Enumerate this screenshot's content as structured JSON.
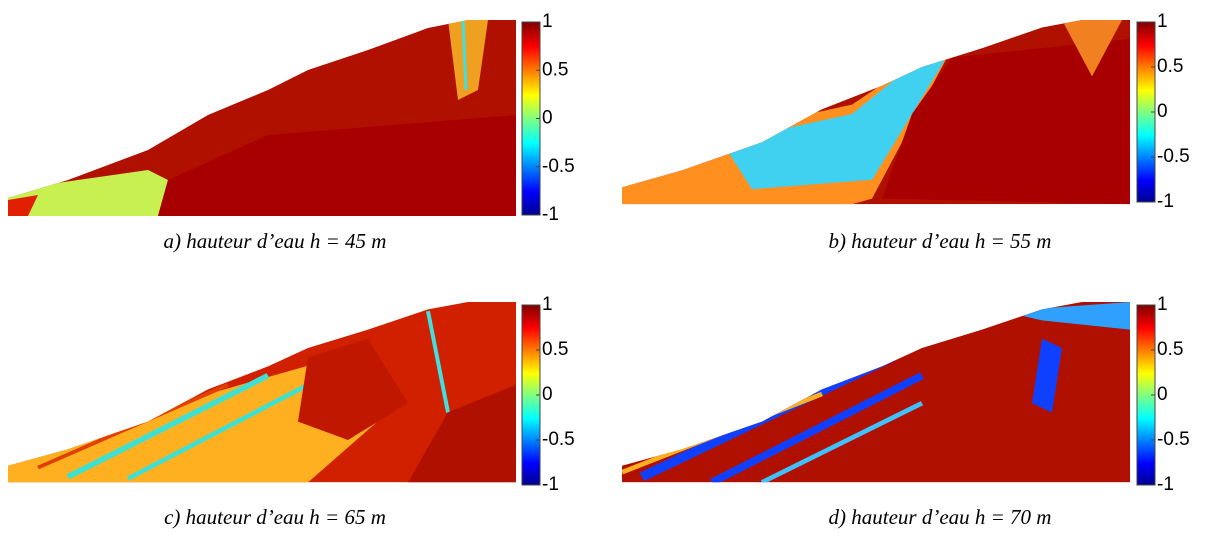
{
  "panels": [
    {
      "caption": "a) hauteur d’eau h = 45 m",
      "colorbar": {
        "lim": [
          -1,
          1
        ],
        "ticks": [
          -1,
          -0.5,
          0,
          0.5,
          1
        ]
      }
    },
    {
      "caption": "b) hauteur d’eau h = 55 m",
      "colorbar": {
        "lim": [
          -1,
          1
        ],
        "ticks": [
          -1,
          -0.5,
          0,
          0.5,
          1
        ]
      }
    },
    {
      "caption": "c) hauteur d’eau h = 65 m",
      "colorbar": {
        "lim": [
          -1,
          1
        ],
        "ticks": [
          -1,
          -0.5,
          0,
          0.5,
          1
        ]
      }
    },
    {
      "caption": "d) hauteur d’eau h = 70 m",
      "colorbar": {
        "lim": [
          -1,
          1
        ],
        "ticks": [
          -1,
          -0.5,
          0,
          0.5,
          1
        ]
      }
    }
  ]
}
